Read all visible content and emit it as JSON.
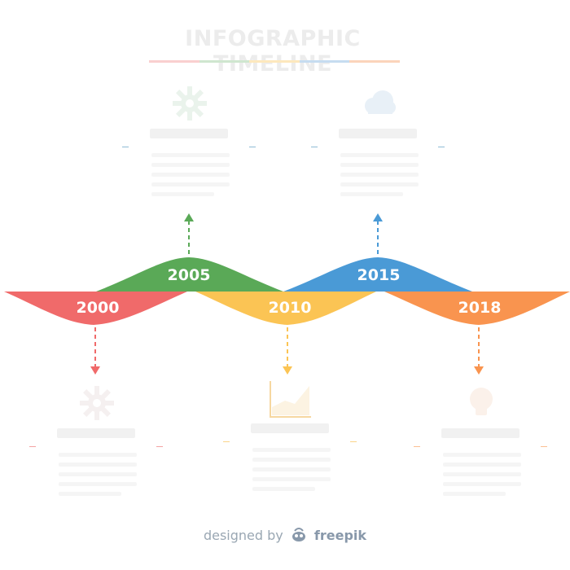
{
  "title": "INFOGRAPHIC TIMELINE",
  "colors": {
    "red": "#f06a6a",
    "green": "#5aa957",
    "yellow": "#fbc454",
    "blue": "#4a9ad6",
    "orange": "#f9944f",
    "faint_icon": "#eef3f0",
    "faint_text": "#f1f1f1"
  },
  "years": [
    "2000",
    "2005",
    "2010",
    "2015",
    "2018"
  ],
  "cards": [
    {
      "year": "2005",
      "icon": "gear-icon",
      "rule_color": "#8fbcd6"
    },
    {
      "year": "2015",
      "icon": "cloud-icon",
      "rule_color": "#8fbcd6"
    },
    {
      "year": "2000",
      "icon": "gear-icon",
      "rule_color": "#f3a3a3"
    },
    {
      "year": "2010",
      "icon": "chart-icon",
      "rule_color": "#fbd58a"
    },
    {
      "year": "2018",
      "icon": "lightbulb-icon",
      "rule_color": "#fbbf93"
    }
  ],
  "credit": {
    "prefix": "designed by",
    "brand": "freepik"
  }
}
